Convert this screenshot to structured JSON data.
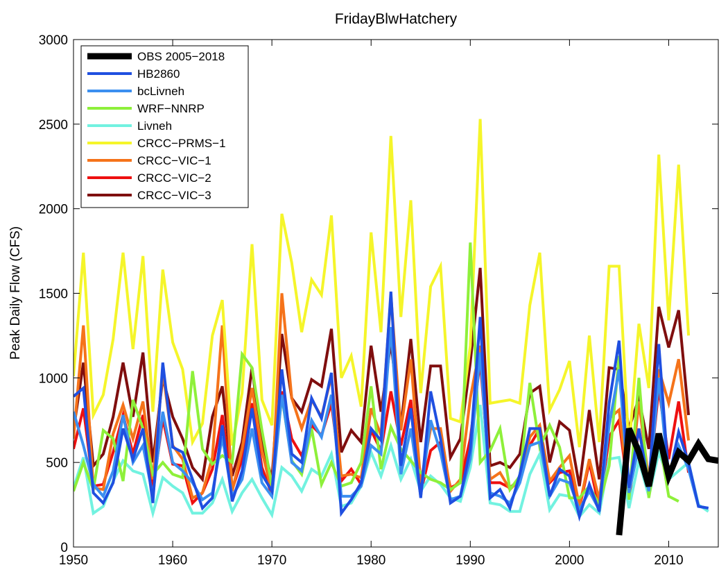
{
  "chart_data": {
    "type": "line",
    "title": "FridayBlwHatchery",
    "xlabel": "",
    "ylabel": "Peak Daily Flow (CFS)",
    "xlim": [
      1950,
      2015
    ],
    "ylim": [
      0,
      3000
    ],
    "x_ticks": [
      "1950",
      "1960",
      "1970",
      "1980",
      "1990",
      "2000",
      "2010"
    ],
    "y_ticks": [
      "0",
      "500",
      "1000",
      "1500",
      "2000",
      "2500",
      "3000"
    ],
    "grid": false,
    "legend_position": "top-left",
    "series": [
      {
        "name": "OBS 2005−2018",
        "color": "#000000",
        "start_year": 2005,
        "values": [
          70,
          700,
          560,
          360,
          670,
          420,
          560,
          510,
          610,
          520,
          510
        ]
      },
      {
        "name": "HB2860",
        "color": "#1f4fe0",
        "start_year": 1950,
        "values": [
          890,
          940,
          320,
          260,
          380,
          700,
          520,
          700,
          260,
          1090,
          590,
          560,
          400,
          230,
          290,
          720,
          270,
          450,
          820,
          430,
          330,
          1050,
          550,
          500,
          880,
          760,
          1030,
          200,
          280,
          380,
          700,
          630,
          1510,
          480,
          820,
          290,
          920,
          640,
          260,
          300,
          580,
          1360,
          290,
          340,
          230,
          430,
          700,
          700,
          300,
          460,
          420,
          180,
          370,
          210,
          850,
          1220,
          350,
          700,
          360,
          1200,
          400,
          680,
          500,
          240,
          230
        ]
      },
      {
        "name": "bcLivneh",
        "color": "#3b8ff0",
        "start_year": 1950,
        "values": [
          800,
          600,
          370,
          300,
          450,
          780,
          500,
          600,
          300,
          800,
          500,
          450,
          380,
          280,
          320,
          650,
          300,
          400,
          700,
          380,
          300,
          900,
          500,
          450,
          750,
          650,
          900,
          300,
          300,
          360,
          600,
          550,
          1300,
          430,
          700,
          300,
          750,
          560,
          280,
          300,
          520,
          1150,
          320,
          300,
          260,
          380,
          600,
          620,
          300,
          400,
          380,
          220,
          330,
          220,
          720,
          1050,
          320,
          600,
          330,
          1000,
          400,
          600,
          460,
          240,
          230
        ]
      },
      {
        "name": "WRF−NNRP",
        "color": "#8ef03a",
        "start_year": 1950,
        "values": [
          330,
          500,
          340,
          690,
          640,
          390,
          870,
          700,
          430,
          500,
          430,
          410,
          1040,
          580,
          490,
          540,
          500,
          1140,
          1060,
          690,
          360,
          890,
          510,
          430,
          700,
          370,
          500,
          360,
          380,
          500,
          950,
          460,
          710,
          580,
          510,
          440,
          400,
          380,
          340,
          380,
          1800,
          500,
          570,
          700,
          340,
          420,
          970,
          590,
          720,
          590,
          290,
          290,
          360,
          250,
          480,
          1130,
          280,
          1000,
          290,
          650,
          300,
          270
        ]
      },
      {
        "name": "Livneh",
        "color": "#72f2e0",
        "start_year": 1950,
        "values": [
          350,
          530,
          200,
          240,
          390,
          510,
          450,
          430,
          200,
          410,
          360,
          320,
          200,
          200,
          260,
          400,
          210,
          320,
          400,
          290,
          190,
          470,
          420,
          330,
          460,
          420,
          550,
          240,
          260,
          360,
          560,
          420,
          600,
          400,
          520,
          330,
          420,
          370,
          290,
          270,
          470,
          840,
          260,
          250,
          210,
          210,
          430,
          550,
          220,
          310,
          300,
          180,
          250,
          200,
          520,
          530,
          230,
          510,
          300,
          560,
          400,
          450,
          500,
          250,
          210
        ]
      },
      {
        "name": "CRCC−PRMS−1",
        "color": "#f5f52a",
        "start_year": 1950,
        "values": [
          1010,
          1740,
          780,
          900,
          1230,
          1740,
          1170,
          1720,
          800,
          1640,
          1210,
          1050,
          620,
          730,
          1250,
          1460,
          600,
          910,
          1790,
          870,
          720,
          1970,
          1680,
          1270,
          1580,
          1490,
          1960,
          1000,
          1130,
          830,
          1860,
          1270,
          2430,
          1360,
          2050,
          910,
          1540,
          1660,
          760,
          740,
          1190,
          2530,
          850,
          860,
          870,
          850,
          1430,
          1740,
          810,
          930,
          1100,
          590,
          1250,
          620,
          1660,
          1660,
          580,
          1320,
          940,
          2320,
          1340,
          2260,
          1250
        ]
      },
      {
        "name": "CRCC−VIC−1",
        "color": "#f5731a",
        "start_year": 1950,
        "values": [
          640,
          1310,
          350,
          340,
          670,
          840,
          640,
          860,
          400,
          1040,
          600,
          520,
          290,
          320,
          530,
          1310,
          330,
          580,
          940,
          570,
          320,
          1500,
          880,
          700,
          870,
          770,
          1010,
          420,
          430,
          410,
          820,
          660,
          1490,
          690,
          1110,
          380,
          700,
          700,
          330,
          400,
          880,
          1190,
          400,
          440,
          340,
          400,
          650,
          720,
          390,
          470,
          540,
          240,
          520,
          280,
          760,
          810,
          300,
          860,
          390,
          1050,
          850,
          1110,
          630
        ]
      },
      {
        "name": "CRCC−VIC−2",
        "color": "#ee1010",
        "start_year": 1950,
        "values": [
          580,
          820,
          360,
          370,
          560,
          780,
          550,
          780,
          340,
          760,
          490,
          480,
          260,
          320,
          460,
          780,
          340,
          520,
          850,
          470,
          310,
          920,
          640,
          540,
          720,
          660,
          850,
          390,
          460,
          370,
          690,
          570,
          920,
          600,
          870,
          320,
          570,
          620,
          350,
          380,
          640,
          1100,
          380,
          380,
          350,
          400,
          600,
          700,
          380,
          440,
          450,
          230,
          500,
          230,
          650,
          750,
          290,
          700,
          370,
          940,
          520,
          860,
          440
        ]
      },
      {
        "name": "CRCC−VIC−3",
        "color": "#7f0e0e",
        "start_year": 1950,
        "values": [
          690,
          1090,
          480,
          550,
          770,
          1090,
          770,
          1150,
          500,
          1000,
          770,
          640,
          470,
          400,
          770,
          950,
          420,
          620,
          1060,
          620,
          400,
          1260,
          880,
          800,
          990,
          950,
          1290,
          560,
          690,
          620,
          1190,
          800,
          1210,
          710,
          1230,
          620,
          1070,
          1070,
          530,
          640,
          1090,
          1650,
          480,
          500,
          470,
          550,
          910,
          950,
          500,
          740,
          690,
          360,
          810,
          400,
          1060,
          1050,
          700,
          880,
          580,
          1420,
          1180,
          1400,
          780
        ]
      }
    ]
  }
}
